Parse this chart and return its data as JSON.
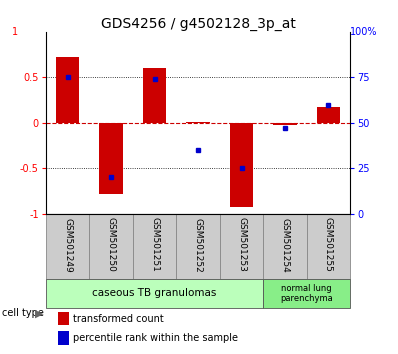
{
  "title": "GDS4256 / g4502128_3p_at",
  "samples": [
    "GSM501249",
    "GSM501250",
    "GSM501251",
    "GSM501252",
    "GSM501253",
    "GSM501254",
    "GSM501255"
  ],
  "transformed_count": [
    0.72,
    -0.78,
    0.6,
    0.01,
    -0.93,
    -0.02,
    0.17
  ],
  "percentile_rank_raw": [
    75,
    20,
    74,
    35,
    25,
    47,
    60
  ],
  "ylim": [
    -1,
    1
  ],
  "yticks_left": [
    -1,
    -0.5,
    0,
    0.5
  ],
  "ytick_labels_left": [
    "-1",
    "-0.5",
    "0",
    "0.5"
  ],
  "yticks_right_vals": [
    0,
    25,
    50,
    75
  ],
  "ytick_labels_right": [
    "0",
    "25",
    "50",
    "75"
  ],
  "bar_color": "#cc0000",
  "dot_color": "#0000cc",
  "hline_color": "#cc0000",
  "group1_color": "#bbffbb",
  "group2_color": "#88ee88",
  "sample_box_color": "#cccccc",
  "title_fontsize": 10,
  "tick_fontsize": 7,
  "sample_fontsize": 6.5,
  "legend_fontsize": 7,
  "group_fontsize": 7.5,
  "bar_width": 0.55
}
